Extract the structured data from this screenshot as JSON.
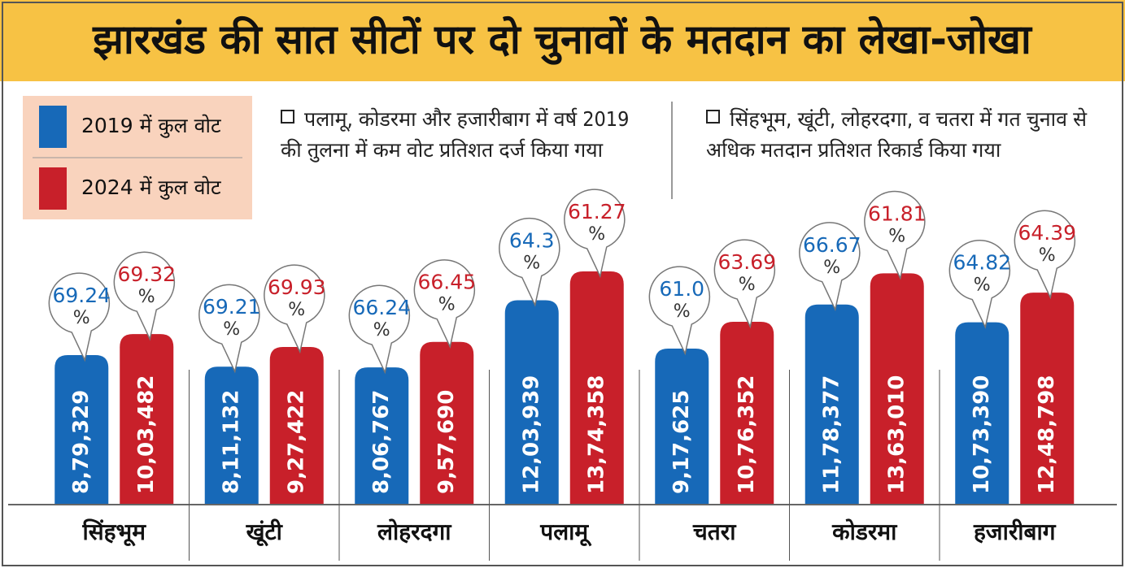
{
  "chart_data": {
    "type": "bar",
    "title": "झारखंड की सात सीटों पर दो चुनावों के मतदान का लेखा-जोखा",
    "notes": [
      "पलामू, कोडरमा और हजारीबाग में वर्ष 2019 की तुलना में कम वोट प्रतिशत दर्ज किया गया",
      "सिंहभूम, खूंटी, लोहरदगा, व चतरा में गत चुनाव से अधिक मतदान प्रतिशत रिकार्ड किया गया"
    ],
    "categories": [
      "सिंहभूम",
      "खूंटी",
      "लोहरदगा",
      "पलामू",
      "चतरा",
      "कोडरमा",
      "हजारीबाग"
    ],
    "percent_unit": "%",
    "series": [
      {
        "name": "2019 में कुल वोट",
        "color": "#1769b8",
        "values": [
          879329,
          811132,
          806767,
          1203939,
          917625,
          1178377,
          1073390
        ],
        "value_labels": [
          "8,79,329",
          "8,11,132",
          "8,06,767",
          "12,03,939",
          "9,17,625",
          "11,78,377",
          "10,73,390"
        ],
        "percent": [
          69.24,
          69.21,
          66.24,
          64.3,
          61.0,
          66.67,
          64.82
        ],
        "percent_labels": [
          "69.24",
          "69.21",
          "66.24",
          "64.3",
          "61.0",
          "66.67",
          "64.82"
        ]
      },
      {
        "name": "2024 में कुल वोट",
        "color": "#c8202a",
        "values": [
          1003482,
          927422,
          957690,
          1374358,
          1076352,
          1363010,
          1248798
        ],
        "value_labels": [
          "10,03,482",
          "9,27,422",
          "9,57,690",
          "13,74,358",
          "10,76,352",
          "13,63,010",
          "12,48,798"
        ],
        "percent": [
          69.32,
          69.93,
          66.45,
          61.27,
          63.69,
          61.81,
          64.39
        ],
        "percent_labels": [
          "69.32",
          "69.93",
          "66.45",
          "61.27",
          "63.69",
          "61.81",
          "64.39"
        ]
      }
    ]
  }
}
